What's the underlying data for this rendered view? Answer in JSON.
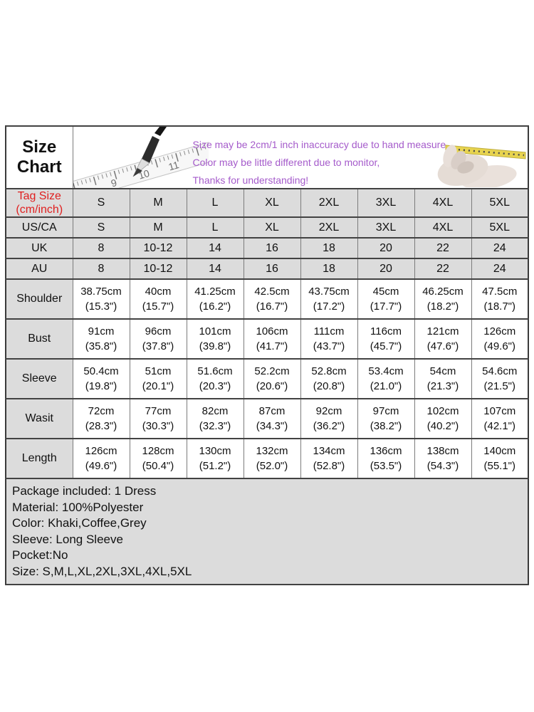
{
  "header": {
    "title": "Size Chart",
    "notice": {
      "lines": [
        "Size may be 2cm/1 inch inaccuracy due to hand measure,",
        "Color may be little different due to monitor,",
        "Thanks for understanding!"
      ]
    },
    "ruler_numbers": [
      "9",
      "10",
      "11"
    ],
    "icons": {
      "left": "pencil-ruler-icon",
      "right": "hand-measuring-tape-icon"
    }
  },
  "size_table": {
    "rows": [
      {
        "label": "Tag Size (cm/inch)",
        "label_lines": [
          "Tag Size",
          "(cm/inch)"
        ],
        "red": true,
        "shaded_values": true,
        "values": [
          "S",
          "M",
          "L",
          "XL",
          "2XL",
          "3XL",
          "4XL",
          "5XL"
        ]
      },
      {
        "label": "US/CA",
        "shaded_values": true,
        "values": [
          "S",
          "M",
          "L",
          "XL",
          "2XL",
          "3XL",
          "4XL",
          "5XL"
        ]
      },
      {
        "label": "UK",
        "shaded_values": true,
        "values": [
          "8",
          "10-12",
          "14",
          "16",
          "18",
          "20",
          "22",
          "24"
        ]
      },
      {
        "label": "AU",
        "shaded_values": true,
        "values": [
          "8",
          "10-12",
          "14",
          "16",
          "18",
          "20",
          "22",
          "24"
        ]
      },
      {
        "label": "Shoulder",
        "values": [
          [
            "38.75cm",
            "(15.3\")"
          ],
          [
            "40cm",
            "(15.7\")"
          ],
          [
            "41.25cm",
            "(16.2\")"
          ],
          [
            "42.5cm",
            "(16.7\")"
          ],
          [
            "43.75cm",
            "(17.2\")"
          ],
          [
            "45cm",
            "(17.7\")"
          ],
          [
            "46.25cm",
            "(18.2\")"
          ],
          [
            "47.5cm",
            "(18.7\")"
          ]
        ]
      },
      {
        "label": "Bust",
        "values": [
          [
            "91cm",
            "(35.8\")"
          ],
          [
            "96cm",
            "(37.8\")"
          ],
          [
            "101cm",
            "(39.8\")"
          ],
          [
            "106cm",
            "(41.7\")"
          ],
          [
            "111cm",
            "(43.7\")"
          ],
          [
            "116cm",
            "(45.7\")"
          ],
          [
            "121cm",
            "(47.6\")"
          ],
          [
            "126cm",
            "(49.6\")"
          ]
        ]
      },
      {
        "label": "Sleeve",
        "values": [
          [
            "50.4cm",
            "(19.8\")"
          ],
          [
            "51cm",
            "(20.1\")"
          ],
          [
            "51.6cm",
            "(20.3\")"
          ],
          [
            "52.2cm",
            "(20.6\")"
          ],
          [
            "52.8cm",
            "(20.8\")"
          ],
          [
            "53.4cm",
            "(21.0\")"
          ],
          [
            "54cm",
            "(21.3\")"
          ],
          [
            "54.6cm",
            "(21.5\")"
          ]
        ]
      },
      {
        "label": "Wasit",
        "values": [
          [
            "72cm",
            "(28.3\")"
          ],
          [
            "77cm",
            "(30.3\")"
          ],
          [
            "82cm",
            "(32.3\")"
          ],
          [
            "87cm",
            "(34.3\")"
          ],
          [
            "92cm",
            "(36.2\")"
          ],
          [
            "97cm",
            "(38.2\")"
          ],
          [
            "102cm",
            "(40.2\")"
          ],
          [
            "107cm",
            "(42.1\")"
          ]
        ]
      },
      {
        "label": "Length",
        "values": [
          [
            "126cm",
            "(49.6\")"
          ],
          [
            "128cm",
            "(50.4\")"
          ],
          [
            "130cm",
            "(51.2\")"
          ],
          [
            "132cm",
            "(52.0\")"
          ],
          [
            "134cm",
            "(52.8\")"
          ],
          [
            "136cm",
            "(53.5\")"
          ],
          [
            "138cm",
            "(54.3\")"
          ],
          [
            "140cm",
            "(55.1\")"
          ]
        ]
      }
    ]
  },
  "product_details": {
    "lines": [
      "Package included: 1 Dress",
      "Material: 100%Polyester",
      "Color: Khaki,Coffee,Grey",
      "Sleeve: Long Sleeve",
      "Pocket:No",
      "Size: S,M,L,XL,2XL,3XL,4XL,5XL"
    ]
  },
  "colors": {
    "notice_text": "#a55bcb",
    "tag_size_text": "#e01f1f",
    "shaded_cell_bg": "#dcdcdc",
    "border_dark": "#424242",
    "border_light": "#7c7c7c",
    "tape_yellow": "#e8d44f"
  }
}
